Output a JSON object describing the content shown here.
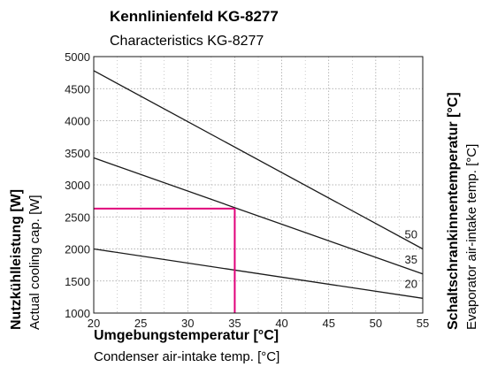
{
  "chart_data": {
    "type": "line",
    "title": "Kennlinienfeld KG-8277",
    "subtitle": "Characteristics KG-8277",
    "xlabel": "Umgebungstemperatur [°C]",
    "xlabel_sub": "Condenser air-intake temp. [°C]",
    "ylabel": "Nutzkühlleistung [W]",
    "ylabel_sub": "Actual cooling cap. [W]",
    "y2label": "Schaltschrankinnentemperatur [°C]",
    "y2label_sub": "Evaporator air-intake temp. [°C]",
    "xlim": [
      20,
      55
    ],
    "ylim": [
      1000,
      5000
    ],
    "x_ticks": [
      20,
      25,
      30,
      35,
      40,
      45,
      50,
      55
    ],
    "y_ticks": [
      1000,
      1500,
      2000,
      2500,
      3000,
      3500,
      4000,
      4500,
      5000
    ],
    "grid": true,
    "series": [
      {
        "name": "50",
        "x": [
          20,
          55
        ],
        "y": [
          4780,
          2000
        ]
      },
      {
        "name": "35",
        "x": [
          20,
          55
        ],
        "y": [
          3420,
          1610
        ]
      },
      {
        "name": "20",
        "x": [
          20,
          55
        ],
        "y": [
          2000,
          1230
        ]
      }
    ],
    "highlight": {
      "x": 35,
      "y": 2630,
      "color": "#e0007a"
    },
    "colors": {
      "lines": "#1a1a1a",
      "grid": "#9a9a9a",
      "highlight": "#e0007a"
    }
  }
}
